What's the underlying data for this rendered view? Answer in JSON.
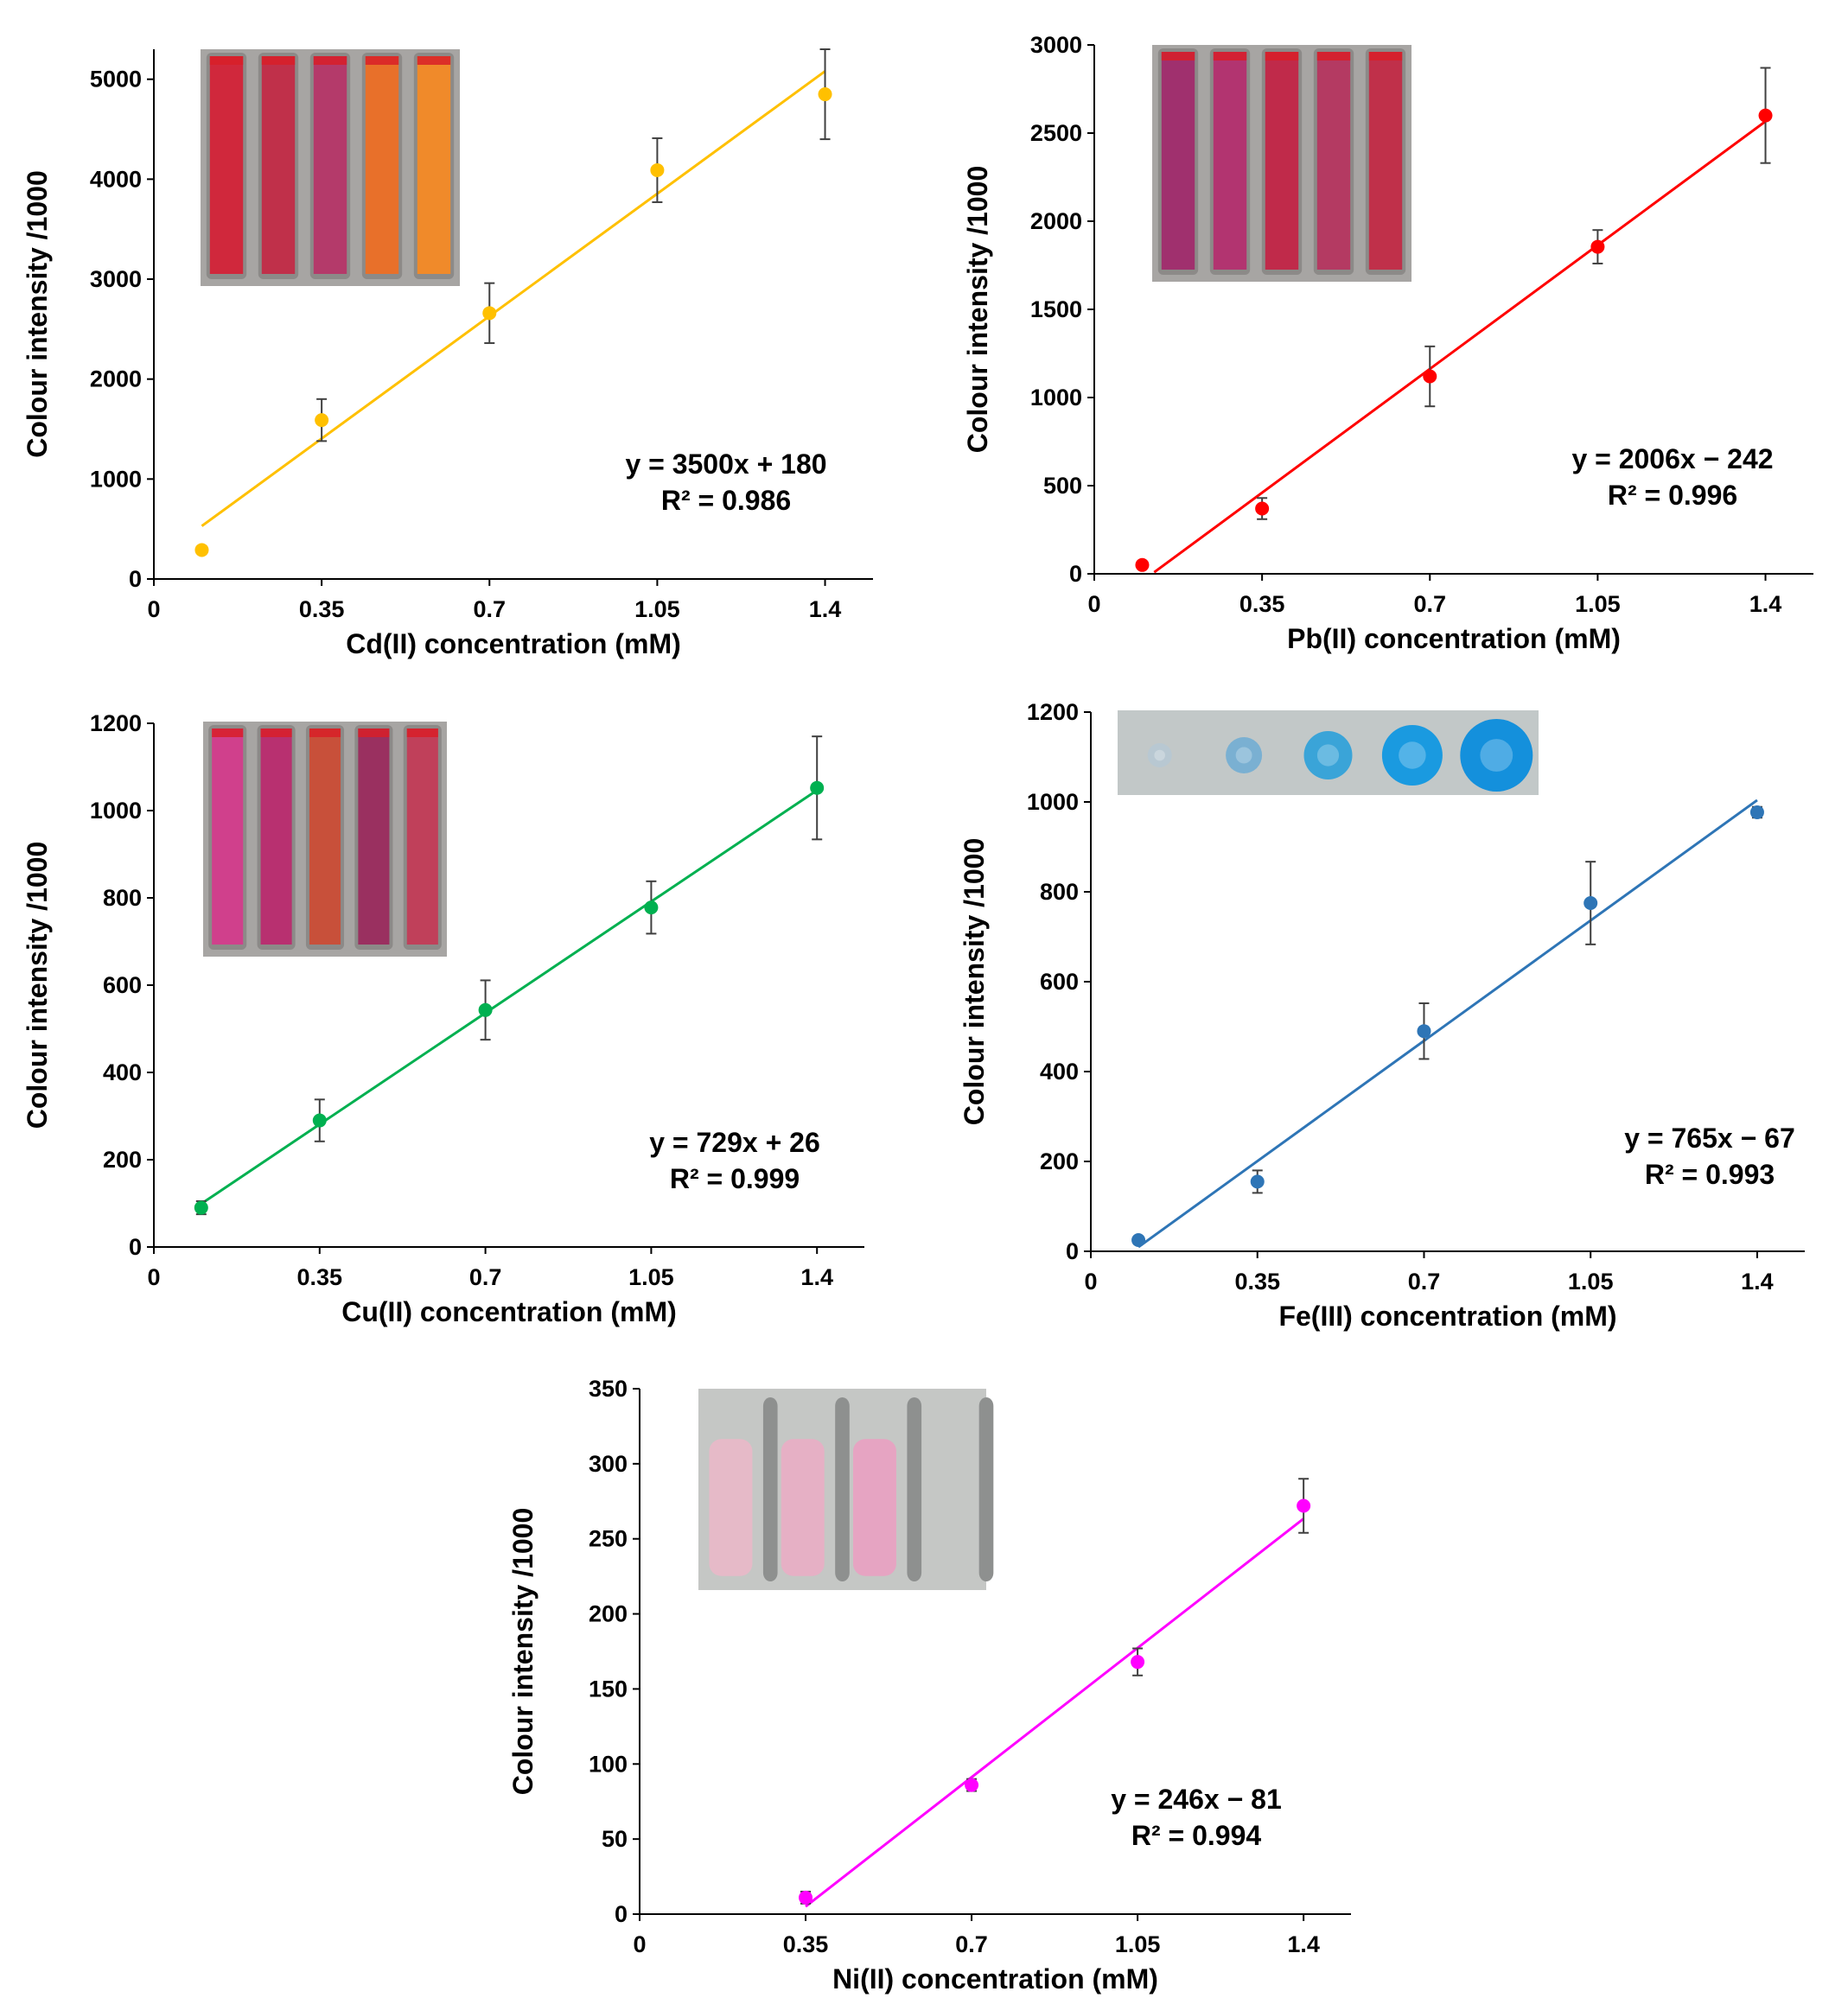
{
  "panels": [
    {
      "chart_data": {
        "type": "scatter",
        "x": [
          0.1,
          0.35,
          0.7,
          1.05,
          1.4
        ],
        "y": [
          290,
          1590,
          2660,
          4090,
          4850
        ],
        "error": [
          30,
          210,
          300,
          320,
          450
        ],
        "xlabel": "Cd(II) concentration (mM)",
        "ylabel": "Colour intensity /1000",
        "xlim": [
          0,
          1.5
        ],
        "ylim": [
          0,
          5300
        ],
        "xticks": [
          0,
          0.35,
          0.7,
          1.05,
          1.4
        ],
        "xtick_labels": [
          "0",
          "0.35",
          "0.7",
          "1.05",
          "1.4"
        ],
        "yticks": [
          0,
          1000,
          2000,
          3000,
          4000,
          5000
        ],
        "ytick_labels": [
          "0",
          "1000",
          "2000",
          "3000",
          "4000",
          "5000"
        ],
        "trendline": {
          "slope": 3500,
          "intercept": 180,
          "x_range": [
            0.1,
            1.4
          ]
        },
        "equation": "y = 3500x + 180",
        "r2": "R² = 0.986",
        "grid": false,
        "color": "#FFC000"
      },
      "inset": {
        "kind": "tubes",
        "colors": [
          "#d0283c",
          "#c0304a",
          "#b43a6a",
          "#e8702a",
          "#f08a2a"
        ]
      }
    },
    {
      "chart_data": {
        "type": "scatter",
        "x": [
          0.1,
          0.35,
          0.7,
          1.05,
          1.4
        ],
        "y": [
          50,
          370,
          1120,
          1855,
          2600
        ],
        "error": [
          20,
          60,
          170,
          95,
          270
        ],
        "xlabel": "Pb(II) concentration (mM)",
        "ylabel": "Colour intensity /1000",
        "xlim": [
          0,
          1.5
        ],
        "ylim": [
          0,
          3000
        ],
        "xticks": [
          0,
          0.35,
          0.7,
          1.05,
          1.4
        ],
        "xtick_labels": [
          "0",
          "0.35",
          "0.7",
          "1.05",
          "1.4"
        ],
        "yticks": [
          0,
          500,
          1000,
          1500,
          2000,
          2500,
          3000
        ],
        "ytick_labels": [
          "0",
          "500",
          "1000",
          "1500",
          "2000",
          "2500",
          "3000"
        ],
        "trendline": {
          "slope": 2006,
          "intercept": -242,
          "x_range": [
            0.125,
            1.4
          ]
        },
        "equation": "y = 2006x − 242",
        "r2": "R² = 0.996",
        "grid": false,
        "color": "#FF0000"
      },
      "inset": {
        "kind": "tubes",
        "colors": [
          "#a0306e",
          "#b23470",
          "#c02a4a",
          "#b43a62",
          "#c0304a"
        ]
      }
    },
    {
      "chart_data": {
        "type": "scatter",
        "x": [
          0.1,
          0.35,
          0.7,
          1.05,
          1.4
        ],
        "y": [
          90,
          290,
          543,
          778,
          1052
        ],
        "error": [
          15,
          48,
          68,
          60,
          118
        ],
        "xlabel": "Cu(II) concentration (mM)",
        "ylabel": "Colour intensity /1000",
        "xlim": [
          0,
          1.5
        ],
        "ylim": [
          0,
          1200
        ],
        "xticks": [
          0,
          0.35,
          0.7,
          1.05,
          1.4
        ],
        "xtick_labels": [
          "0",
          "0.35",
          "0.7",
          "1.05",
          "1.4"
        ],
        "yticks": [
          0,
          200,
          400,
          600,
          800,
          1000,
          1200
        ],
        "ytick_labels": [
          "0",
          "200",
          "400",
          "600",
          "800",
          "1000",
          "1200"
        ],
        "trendline": {
          "slope": 729,
          "intercept": 26,
          "x_range": [
            0.1,
            1.4
          ]
        },
        "equation": "y = 729x + 26",
        "r2": "R² = 0.999",
        "grid": false,
        "color": "#00B050"
      },
      "inset": {
        "kind": "tubes",
        "colors": [
          "#d0408c",
          "#b83070",
          "#c8503a",
          "#9a3060",
          "#c0405a"
        ]
      }
    },
    {
      "chart_data": {
        "type": "scatter",
        "x": [
          0.1,
          0.35,
          0.7,
          1.05,
          1.4
        ],
        "y": [
          25,
          155,
          490,
          775,
          977
        ],
        "error": [
          8,
          25,
          62,
          92,
          12
        ],
        "xlabel": "Fe(III) concentration (mM)",
        "ylabel": "Colour intensity /1000",
        "xlim": [
          0,
          1.5
        ],
        "ylim": [
          0,
          1200
        ],
        "xticks": [
          0,
          0.35,
          0.7,
          1.05,
          1.4
        ],
        "xtick_labels": [
          "0",
          "0.35",
          "0.7",
          "1.05",
          "1.4"
        ],
        "yticks": [
          0,
          200,
          400,
          600,
          800,
          1000,
          1200
        ],
        "ytick_labels": [
          "0",
          "200",
          "400",
          "600",
          "800",
          "1000",
          "1200"
        ],
        "trendline": {
          "slope": 765,
          "intercept": -67,
          "x_range": [
            0.1,
            1.4
          ]
        },
        "equation": "y = 765x − 67",
        "r2": "R² = 0.993",
        "grid": false,
        "color": "#2E75B6"
      },
      "inset": {
        "kind": "spots",
        "colors": [
          "#b8c8d2",
          "#7ab0d2",
          "#3aa4d8",
          "#1a9ae0",
          "#1490dc"
        ]
      }
    },
    {
      "chart_data": {
        "type": "scatter",
        "x": [
          0.35,
          0.7,
          1.05,
          1.4
        ],
        "y": [
          11,
          86,
          168,
          272
        ],
        "error": [
          4,
          4,
          9,
          18
        ],
        "xlabel": "Ni(II) concentration (mM)",
        "ylabel": "Colour intensity /1000",
        "xlim": [
          0,
          1.5
        ],
        "ylim": [
          0,
          350
        ],
        "xticks": [
          0,
          0.35,
          0.7,
          1.05,
          1.4
        ],
        "xtick_labels": [
          "0",
          "0.35",
          "0.7",
          "1.05",
          "1.4"
        ],
        "yticks": [
          0,
          50,
          100,
          150,
          200,
          250,
          300,
          350
        ],
        "ytick_labels": [
          "0",
          "50",
          "100",
          "150",
          "200",
          "250",
          "300",
          "350"
        ],
        "trendline": {
          "slope": 246,
          "intercept": -81,
          "x_range": [
            0.35,
            1.4
          ]
        },
        "equation": "y = 246x − 81",
        "r2": "R² = 0.994",
        "grid": false,
        "color": "#FF00FF"
      },
      "inset": {
        "kind": "wells",
        "colors": [
          "#f0b6c8",
          "#f0a8c4",
          "#f098c0"
        ]
      }
    }
  ]
}
